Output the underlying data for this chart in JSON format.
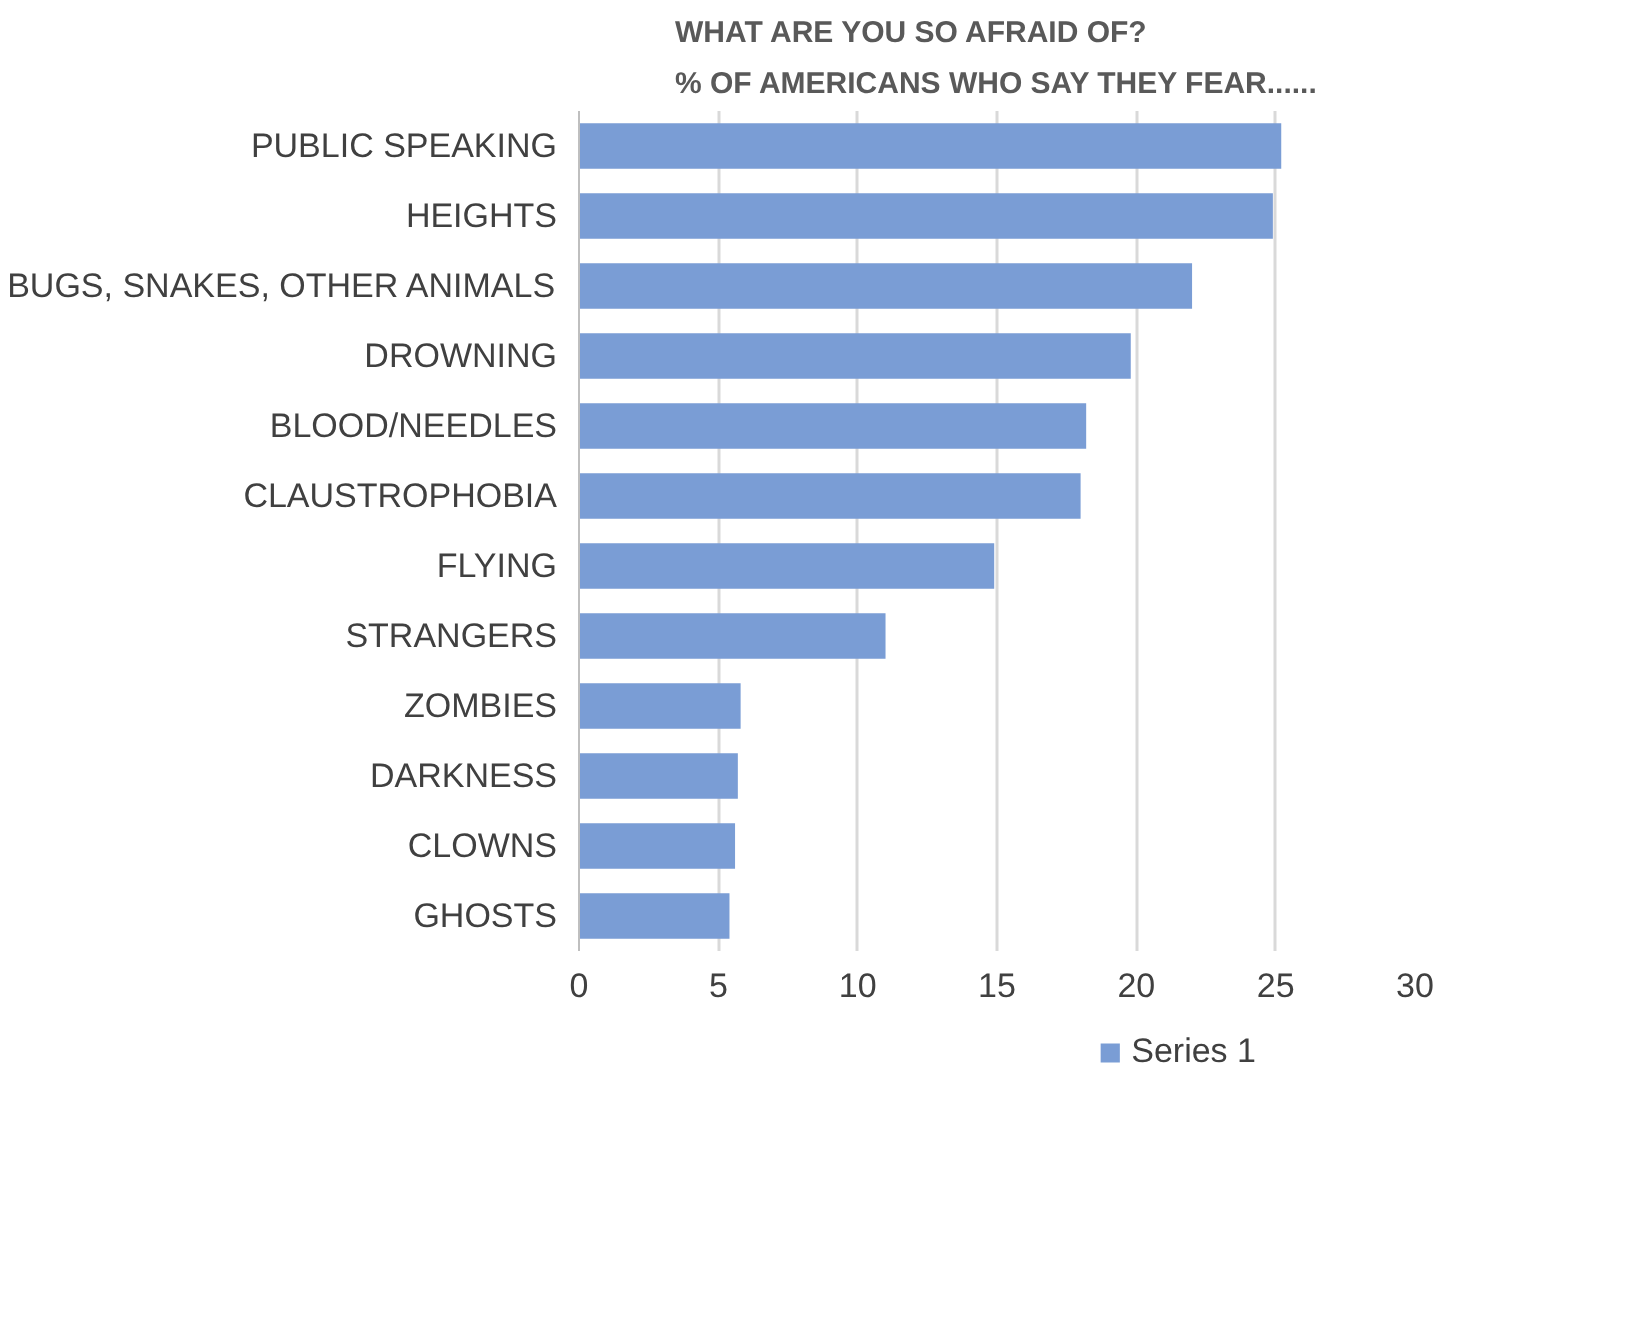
{
  "chart_data": {
    "type": "bar",
    "orientation": "horizontal",
    "title": "WHAT ARE YOU SO AFRAID OF?\n% OF AMERICANS WHO SAY THEY FEAR......",
    "categories": [
      "PUBLIC SPEAKING",
      "HEIGHTS",
      "BUGS, SNAKES, OTHER ANIMALS",
      "DROWNING",
      "BLOOD/NEEDLES",
      "CLAUSTROPHOBIA",
      "FLYING",
      "STRANGERS",
      "ZOMBIES",
      "DARKNESS",
      "CLOWNS",
      "GHOSTS"
    ],
    "series": [
      {
        "name": "Series 1",
        "color": "#7a9dd5",
        "values": [
          25.2,
          24.9,
          22.0,
          19.8,
          18.2,
          18.0,
          14.9,
          11.0,
          5.8,
          5.7,
          5.6,
          5.4
        ]
      }
    ],
    "xlim": [
      0,
      30
    ],
    "xticks": [
      0,
      5,
      10,
      15,
      20,
      25,
      30
    ],
    "grid": "x",
    "legend": "bottom"
  }
}
